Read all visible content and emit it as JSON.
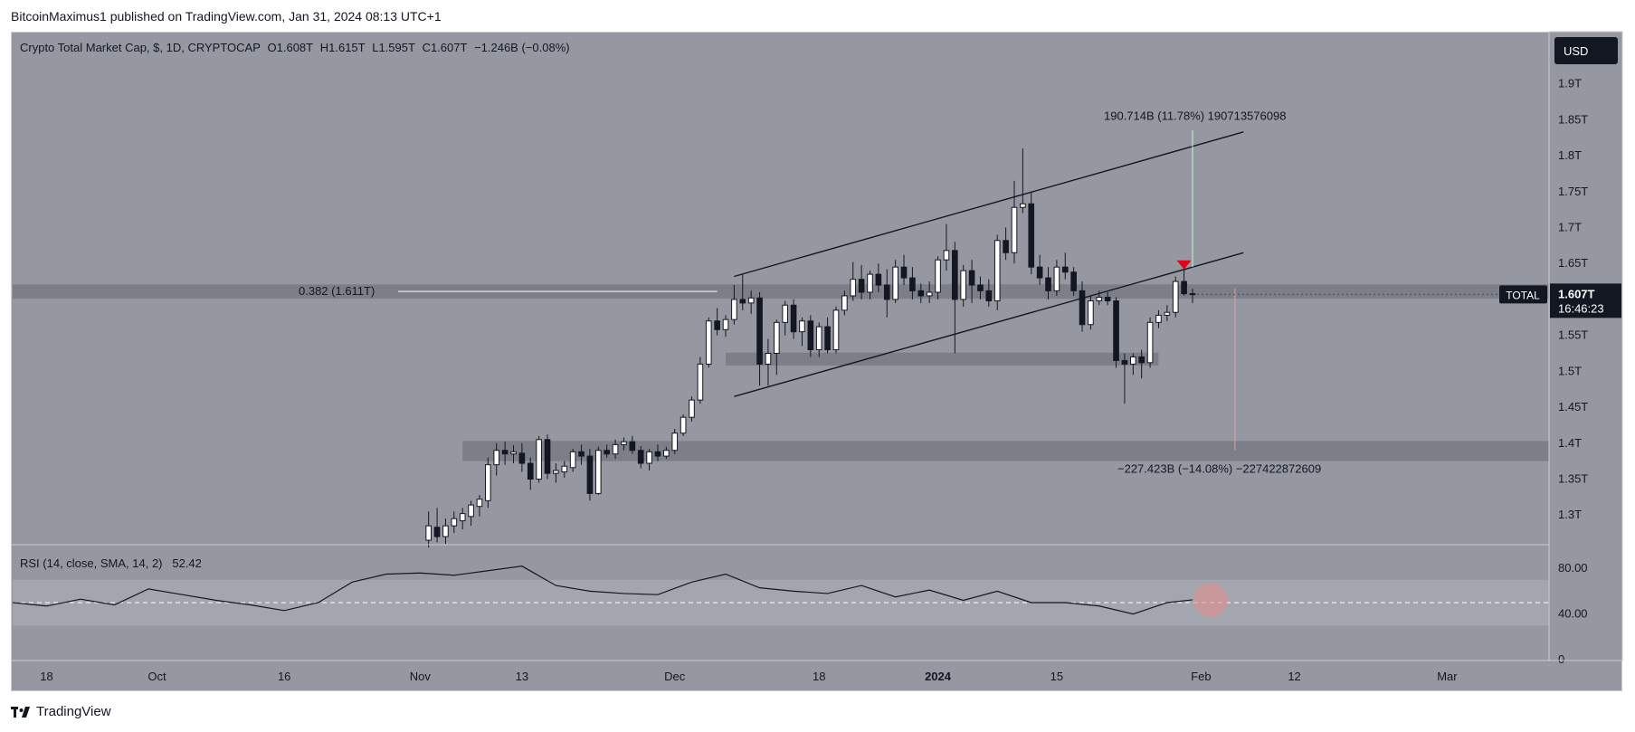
{
  "header": {
    "published_by": "BitcoinMaximus1 published on TradingView.com, Jan 31, 2024 08:13 UTC+1"
  },
  "legend": {
    "symbol": "Crypto Total Market Cap, $, 1D, CRYPTOCAP",
    "open": "O1.608T",
    "high": "H1.615T",
    "low": "L1.595T",
    "close": "C1.607T",
    "change": "−1.246B (−0.08%)"
  },
  "currency_button": "USD",
  "price_badge": {
    "symbol": "TOTAL",
    "price": "1.607T",
    "countdown": "16:46:23"
  },
  "annotations": {
    "fib_label": "0.382 (1.611T)",
    "upper_measure": "190.714B (11.78%) 190713576098",
    "lower_measure": "−227.423B (−14.08%) −227422872609"
  },
  "rsi": {
    "label": "RSI (14, close, SMA, 14, 2)",
    "value": "52.42",
    "ticks": [
      "80.00",
      "40.00",
      "0"
    ]
  },
  "footer": {
    "brand": "TradingView"
  },
  "colors": {
    "background": "#9598a1",
    "bull_candle": "#ffffff",
    "bear_candle": "#131722",
    "zone": "#7c7f88",
    "rsi_band": "#a3a6ae",
    "marker": "#e3001b"
  },
  "chart_data": [
    {
      "type": "candlestick",
      "title": "Crypto Total Market Cap, $, 1D, CRYPTOCAP",
      "y_ticks": [
        "1.3T",
        "1.35T",
        "1.4T",
        "1.45T",
        "1.5T",
        "1.55T",
        "1.6T",
        "1.65T",
        "1.7T",
        "1.75T",
        "1.8T",
        "1.85T",
        "1.9T"
      ],
      "x_ticks": [
        "18",
        "Oct",
        "16",
        "Nov",
        "13",
        "Dec",
        "18",
        "2024",
        "15",
        "Feb",
        "12",
        "Mar"
      ],
      "x_tick_dates": [
        "2023-09-18",
        "2023-10-01",
        "2023-10-16",
        "2023-11-01",
        "2023-11-13",
        "2023-12-01",
        "2023-12-18",
        "2024-01-01",
        "2024-01-15",
        "2024-02-01",
        "2024-02-12",
        "2024-03-01"
      ],
      "ylim": [
        1.26,
        1.97
      ],
      "xlim": [
        "2023-09-14",
        "2024-03-13"
      ],
      "candles": [
        {
          "date": "2023-11-02",
          "o": 1.265,
          "h": 1.305,
          "l": 1.255,
          "c": 1.285
        },
        {
          "date": "2023-11-03",
          "o": 1.283,
          "h": 1.31,
          "l": 1.262,
          "c": 1.27
        },
        {
          "date": "2023-11-04",
          "o": 1.27,
          "h": 1.295,
          "l": 1.26,
          "c": 1.285
        },
        {
          "date": "2023-11-05",
          "o": 1.285,
          "h": 1.305,
          "l": 1.275,
          "c": 1.295
        },
        {
          "date": "2023-11-06",
          "o": 1.292,
          "h": 1.31,
          "l": 1.28,
          "c": 1.302
        },
        {
          "date": "2023-11-07",
          "o": 1.298,
          "h": 1.32,
          "l": 1.285,
          "c": 1.314
        },
        {
          "date": "2023-11-08",
          "o": 1.312,
          "h": 1.328,
          "l": 1.298,
          "c": 1.322
        },
        {
          "date": "2023-11-09",
          "o": 1.32,
          "h": 1.38,
          "l": 1.31,
          "c": 1.37
        },
        {
          "date": "2023-11-10",
          "o": 1.37,
          "h": 1.4,
          "l": 1.355,
          "c": 1.39
        },
        {
          "date": "2023-11-11",
          "o": 1.39,
          "h": 1.402,
          "l": 1.37,
          "c": 1.385
        },
        {
          "date": "2023-11-12",
          "o": 1.385,
          "h": 1.397,
          "l": 1.372,
          "c": 1.388
        },
        {
          "date": "2023-11-13",
          "o": 1.386,
          "h": 1.4,
          "l": 1.36,
          "c": 1.372
        },
        {
          "date": "2023-11-14",
          "o": 1.372,
          "h": 1.38,
          "l": 1.335,
          "c": 1.35
        },
        {
          "date": "2023-11-15",
          "o": 1.35,
          "h": 1.41,
          "l": 1.345,
          "c": 1.405
        },
        {
          "date": "2023-11-16",
          "o": 1.405,
          "h": 1.412,
          "l": 1.35,
          "c": 1.358
        },
        {
          "date": "2023-11-17",
          "o": 1.358,
          "h": 1.372,
          "l": 1.345,
          "c": 1.362
        },
        {
          "date": "2023-11-18",
          "o": 1.36,
          "h": 1.375,
          "l": 1.352,
          "c": 1.368
        },
        {
          "date": "2023-11-19",
          "o": 1.366,
          "h": 1.392,
          "l": 1.36,
          "c": 1.388
        },
        {
          "date": "2023-11-20",
          "o": 1.388,
          "h": 1.398,
          "l": 1.37,
          "c": 1.382
        },
        {
          "date": "2023-11-21",
          "o": 1.382,
          "h": 1.392,
          "l": 1.32,
          "c": 1.33
        },
        {
          "date": "2023-11-22",
          "o": 1.33,
          "h": 1.395,
          "l": 1.328,
          "c": 1.39
        },
        {
          "date": "2023-11-23",
          "o": 1.39,
          "h": 1.398,
          "l": 1.38,
          "c": 1.385
        },
        {
          "date": "2023-11-24",
          "o": 1.385,
          "h": 1.405,
          "l": 1.378,
          "c": 1.398
        },
        {
          "date": "2023-11-25",
          "o": 1.398,
          "h": 1.408,
          "l": 1.39,
          "c": 1.402
        },
        {
          "date": "2023-11-26",
          "o": 1.402,
          "h": 1.41,
          "l": 1.385,
          "c": 1.39
        },
        {
          "date": "2023-11-27",
          "o": 1.39,
          "h": 1.396,
          "l": 1.365,
          "c": 1.372
        },
        {
          "date": "2023-11-28",
          "o": 1.372,
          "h": 1.392,
          "l": 1.362,
          "c": 1.388
        },
        {
          "date": "2023-11-29",
          "o": 1.388,
          "h": 1.398,
          "l": 1.375,
          "c": 1.382
        },
        {
          "date": "2023-11-30",
          "o": 1.382,
          "h": 1.395,
          "l": 1.378,
          "c": 1.39
        },
        {
          "date": "2023-12-01",
          "o": 1.39,
          "h": 1.42,
          "l": 1.385,
          "c": 1.414
        },
        {
          "date": "2023-12-02",
          "o": 1.414,
          "h": 1.44,
          "l": 1.41,
          "c": 1.436
        },
        {
          "date": "2023-12-03",
          "o": 1.436,
          "h": 1.465,
          "l": 1.43,
          "c": 1.46
        },
        {
          "date": "2023-12-04",
          "o": 1.46,
          "h": 1.52,
          "l": 1.455,
          "c": 1.51
        },
        {
          "date": "2023-12-05",
          "o": 1.51,
          "h": 1.575,
          "l": 1.505,
          "c": 1.57
        },
        {
          "date": "2023-12-06",
          "o": 1.57,
          "h": 1.588,
          "l": 1.55,
          "c": 1.558
        },
        {
          "date": "2023-12-07",
          "o": 1.558,
          "h": 1.578,
          "l": 1.548,
          "c": 1.572
        },
        {
          "date": "2023-12-08",
          "o": 1.572,
          "h": 1.62,
          "l": 1.565,
          "c": 1.6
        },
        {
          "date": "2023-12-09",
          "o": 1.6,
          "h": 1.635,
          "l": 1.585,
          "c": 1.595
        },
        {
          "date": "2023-12-10",
          "o": 1.595,
          "h": 1.612,
          "l": 1.58,
          "c": 1.602
        },
        {
          "date": "2023-12-11",
          "o": 1.602,
          "h": 1.61,
          "l": 1.48,
          "c": 1.51
        },
        {
          "date": "2023-12-12",
          "o": 1.51,
          "h": 1.545,
          "l": 1.48,
          "c": 1.525
        },
        {
          "date": "2023-12-13",
          "o": 1.525,
          "h": 1.572,
          "l": 1.495,
          "c": 1.568
        },
        {
          "date": "2023-12-14",
          "o": 1.568,
          "h": 1.598,
          "l": 1.55,
          "c": 1.592
        },
        {
          "date": "2023-12-15",
          "o": 1.592,
          "h": 1.6,
          "l": 1.545,
          "c": 1.555
        },
        {
          "date": "2023-12-16",
          "o": 1.555,
          "h": 1.575,
          "l": 1.535,
          "c": 1.57
        },
        {
          "date": "2023-12-17",
          "o": 1.57,
          "h": 1.578,
          "l": 1.52,
          "c": 1.53
        },
        {
          "date": "2023-12-18",
          "o": 1.53,
          "h": 1.568,
          "l": 1.52,
          "c": 1.562
        },
        {
          "date": "2023-12-19",
          "o": 1.562,
          "h": 1.575,
          "l": 1.525,
          "c": 1.53
        },
        {
          "date": "2023-12-20",
          "o": 1.53,
          "h": 1.59,
          "l": 1.525,
          "c": 1.585
        },
        {
          "date": "2023-12-21",
          "o": 1.585,
          "h": 1.612,
          "l": 1.578,
          "c": 1.605
        },
        {
          "date": "2023-12-22",
          "o": 1.605,
          "h": 1.652,
          "l": 1.598,
          "c": 1.628
        },
        {
          "date": "2023-12-23",
          "o": 1.628,
          "h": 1.648,
          "l": 1.6,
          "c": 1.61
        },
        {
          "date": "2023-12-24",
          "o": 1.61,
          "h": 1.64,
          "l": 1.6,
          "c": 1.635
        },
        {
          "date": "2023-12-25",
          "o": 1.635,
          "h": 1.65,
          "l": 1.61,
          "c": 1.62
        },
        {
          "date": "2023-12-26",
          "o": 1.62,
          "h": 1.642,
          "l": 1.575,
          "c": 1.6
        },
        {
          "date": "2023-12-27",
          "o": 1.6,
          "h": 1.655,
          "l": 1.595,
          "c": 1.645
        },
        {
          "date": "2023-12-28",
          "o": 1.645,
          "h": 1.662,
          "l": 1.62,
          "c": 1.63
        },
        {
          "date": "2023-12-29",
          "o": 1.63,
          "h": 1.645,
          "l": 1.6,
          "c": 1.612
        },
        {
          "date": "2023-12-30",
          "o": 1.612,
          "h": 1.622,
          "l": 1.595,
          "c": 1.605
        },
        {
          "date": "2023-12-31",
          "o": 1.605,
          "h": 1.625,
          "l": 1.595,
          "c": 1.61
        },
        {
          "date": "2024-01-01",
          "o": 1.61,
          "h": 1.66,
          "l": 1.6,
          "c": 1.655
        },
        {
          "date": "2024-01-02",
          "o": 1.655,
          "h": 1.705,
          "l": 1.64,
          "c": 1.668
        },
        {
          "date": "2024-01-03",
          "o": 1.668,
          "h": 1.68,
          "l": 1.525,
          "c": 1.6
        },
        {
          "date": "2024-01-04",
          "o": 1.6,
          "h": 1.648,
          "l": 1.59,
          "c": 1.64
        },
        {
          "date": "2024-01-05",
          "o": 1.64,
          "h": 1.655,
          "l": 1.595,
          "c": 1.62
        },
        {
          "date": "2024-01-06",
          "o": 1.62,
          "h": 1.632,
          "l": 1.6,
          "c": 1.612
        },
        {
          "date": "2024-01-07",
          "o": 1.612,
          "h": 1.628,
          "l": 1.59,
          "c": 1.598
        },
        {
          "date": "2024-01-08",
          "o": 1.598,
          "h": 1.69,
          "l": 1.585,
          "c": 1.682
        },
        {
          "date": "2024-01-09",
          "o": 1.682,
          "h": 1.7,
          "l": 1.655,
          "c": 1.665
        },
        {
          "date": "2024-01-10",
          "o": 1.665,
          "h": 1.765,
          "l": 1.65,
          "c": 1.728
        },
        {
          "date": "2024-01-11",
          "o": 1.728,
          "h": 1.81,
          "l": 1.72,
          "c": 1.733
        },
        {
          "date": "2024-01-12",
          "o": 1.733,
          "h": 1.75,
          "l": 1.635,
          "c": 1.645
        },
        {
          "date": "2024-01-13",
          "o": 1.645,
          "h": 1.662,
          "l": 1.62,
          "c": 1.63
        },
        {
          "date": "2024-01-14",
          "o": 1.63,
          "h": 1.645,
          "l": 1.6,
          "c": 1.612
        },
        {
          "date": "2024-01-15",
          "o": 1.612,
          "h": 1.655,
          "l": 1.605,
          "c": 1.645
        },
        {
          "date": "2024-01-16",
          "o": 1.645,
          "h": 1.665,
          "l": 1.628,
          "c": 1.638
        },
        {
          "date": "2024-01-17",
          "o": 1.638,
          "h": 1.645,
          "l": 1.605,
          "c": 1.612
        },
        {
          "date": "2024-01-18",
          "o": 1.612,
          "h": 1.625,
          "l": 1.555,
          "c": 1.565
        },
        {
          "date": "2024-01-19",
          "o": 1.565,
          "h": 1.605,
          "l": 1.558,
          "c": 1.598
        },
        {
          "date": "2024-01-20",
          "o": 1.598,
          "h": 1.612,
          "l": 1.592,
          "c": 1.603
        },
        {
          "date": "2024-01-21",
          "o": 1.603,
          "h": 1.61,
          "l": 1.592,
          "c": 1.598
        },
        {
          "date": "2024-01-22",
          "o": 1.598,
          "h": 1.603,
          "l": 1.505,
          "c": 1.515
        },
        {
          "date": "2024-01-23",
          "o": 1.515,
          "h": 1.525,
          "l": 1.455,
          "c": 1.51
        },
        {
          "date": "2024-01-24",
          "o": 1.51,
          "h": 1.525,
          "l": 1.495,
          "c": 1.52
        },
        {
          "date": "2024-01-25",
          "o": 1.52,
          "h": 1.53,
          "l": 1.49,
          "c": 1.512
        },
        {
          "date": "2024-01-26",
          "o": 1.512,
          "h": 1.575,
          "l": 1.505,
          "c": 1.568
        },
        {
          "date": "2024-01-27",
          "o": 1.568,
          "h": 1.585,
          "l": 1.56,
          "c": 1.578
        },
        {
          "date": "2024-01-28",
          "o": 1.578,
          "h": 1.592,
          "l": 1.57,
          "c": 1.582
        },
        {
          "date": "2024-01-29",
          "o": 1.582,
          "h": 1.632,
          "l": 1.575,
          "c": 1.625
        },
        {
          "date": "2024-01-30",
          "o": 1.625,
          "h": 1.645,
          "l": 1.605,
          "c": 1.608
        },
        {
          "date": "2024-01-31",
          "o": 1.608,
          "h": 1.615,
          "l": 1.595,
          "c": 1.607
        }
      ],
      "channel_lower": {
        "from": {
          "date": "2023-12-08",
          "y": 1.465
        },
        "to": {
          "date": "2024-02-06",
          "y": 1.665
        }
      },
      "channel_upper": {
        "from": {
          "date": "2023-12-08",
          "y": 1.632
        },
        "to": {
          "date": "2024-02-06",
          "y": 1.833
        }
      },
      "horizontal_zones": [
        {
          "y_from": 1.601,
          "y_to": 1.621,
          "from": "2023-09-14",
          "to": "2024-03-13"
        },
        {
          "y_from": 1.508,
          "y_to": 1.526,
          "from": "2023-12-07",
          "to": "2024-01-27"
        },
        {
          "y_from": 1.375,
          "y_to": 1.403,
          "from": "2023-11-06",
          "to": "2024-03-13"
        }
      ],
      "fib_level": {
        "ratio": 0.382,
        "y": 1.611
      },
      "measure_up": {
        "value": "190.714B",
        "pct": "11.78%",
        "from": 1.645,
        "to": 1.835
      },
      "measure_down": {
        "value": "-227.423B",
        "pct": "-14.08%",
        "from": 1.615,
        "to": 1.39
      },
      "breakdown_marker": {
        "date": "2024-01-30",
        "y": 1.648
      },
      "last_price": 1.607
    },
    {
      "type": "line",
      "title": "RSI (14, close, SMA, 14, 2)",
      "ylim": [
        0,
        100
      ],
      "y_ticks": [
        80,
        40,
        0
      ],
      "band": [
        30,
        70
      ],
      "midline": 50,
      "last_value": 52.42,
      "x": [
        "2023-09-14",
        "2023-09-18",
        "2023-09-22",
        "2023-09-26",
        "2023-09-30",
        "2023-10-04",
        "2023-10-08",
        "2023-10-12",
        "2023-10-16",
        "2023-10-20",
        "2023-10-24",
        "2023-10-28",
        "2023-11-01",
        "2023-11-05",
        "2023-11-09",
        "2023-11-13",
        "2023-11-17",
        "2023-11-21",
        "2023-11-25",
        "2023-11-29",
        "2023-12-03",
        "2023-12-07",
        "2023-12-11",
        "2023-12-15",
        "2023-12-19",
        "2023-12-23",
        "2023-12-27",
        "2023-12-31",
        "2024-01-04",
        "2024-01-08",
        "2024-01-12",
        "2024-01-16",
        "2024-01-20",
        "2024-01-24",
        "2024-01-28",
        "2024-01-31"
      ],
      "values": [
        50,
        47,
        53,
        48,
        62,
        57,
        52,
        48,
        43,
        50,
        68,
        75,
        76,
        74,
        78,
        82,
        65,
        60,
        58,
        57,
        68,
        75,
        63,
        60,
        58,
        65,
        55,
        61,
        52,
        60,
        50,
        50,
        47,
        40,
        50,
        52.42
      ]
    }
  ]
}
